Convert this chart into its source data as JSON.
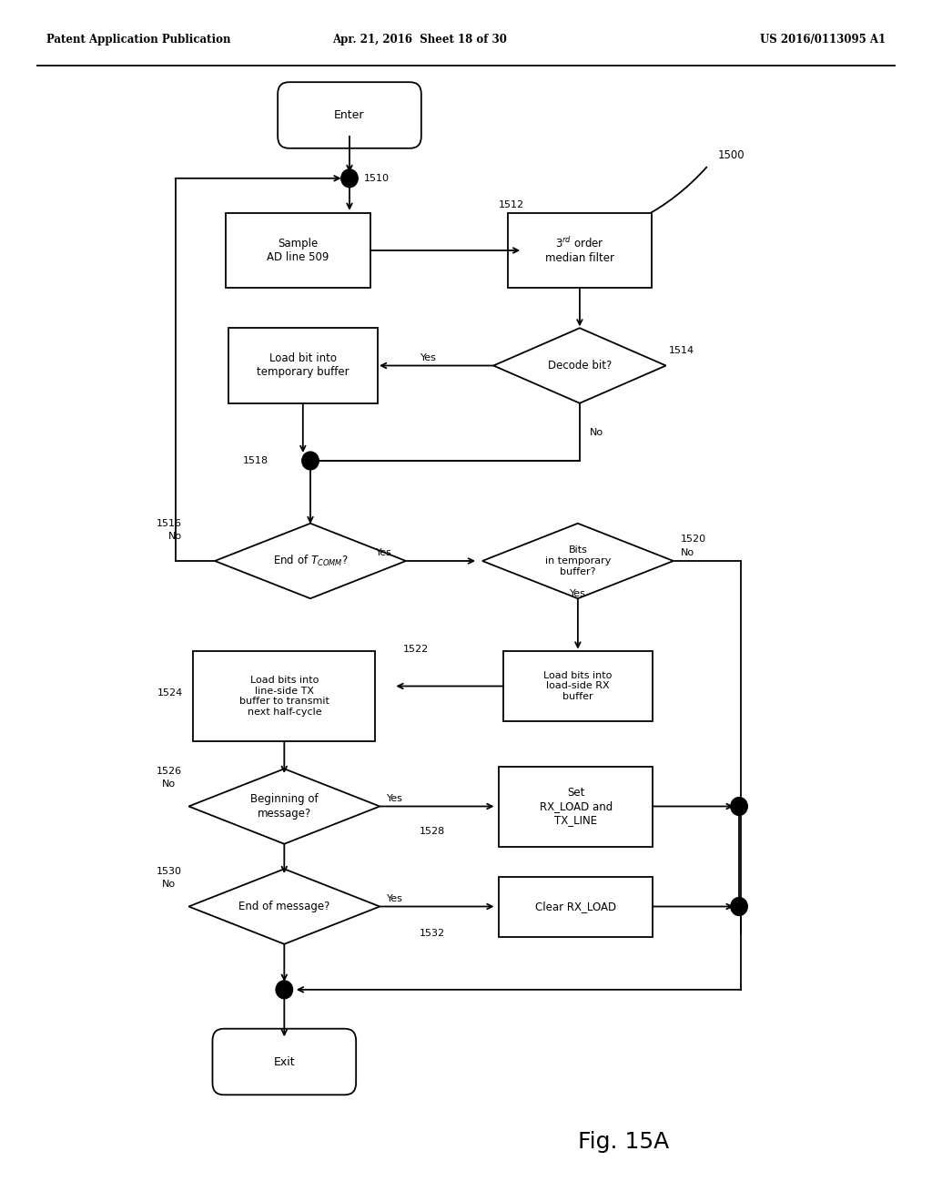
{
  "bg_color": "#ffffff",
  "header_left": "Patent Application Publication",
  "header_mid": "Apr. 21, 2016  Sheet 18 of 30",
  "header_right": "US 2016/0113095 A1",
  "fig_label": "Fig. 15A",
  "diagram_label": "1500"
}
